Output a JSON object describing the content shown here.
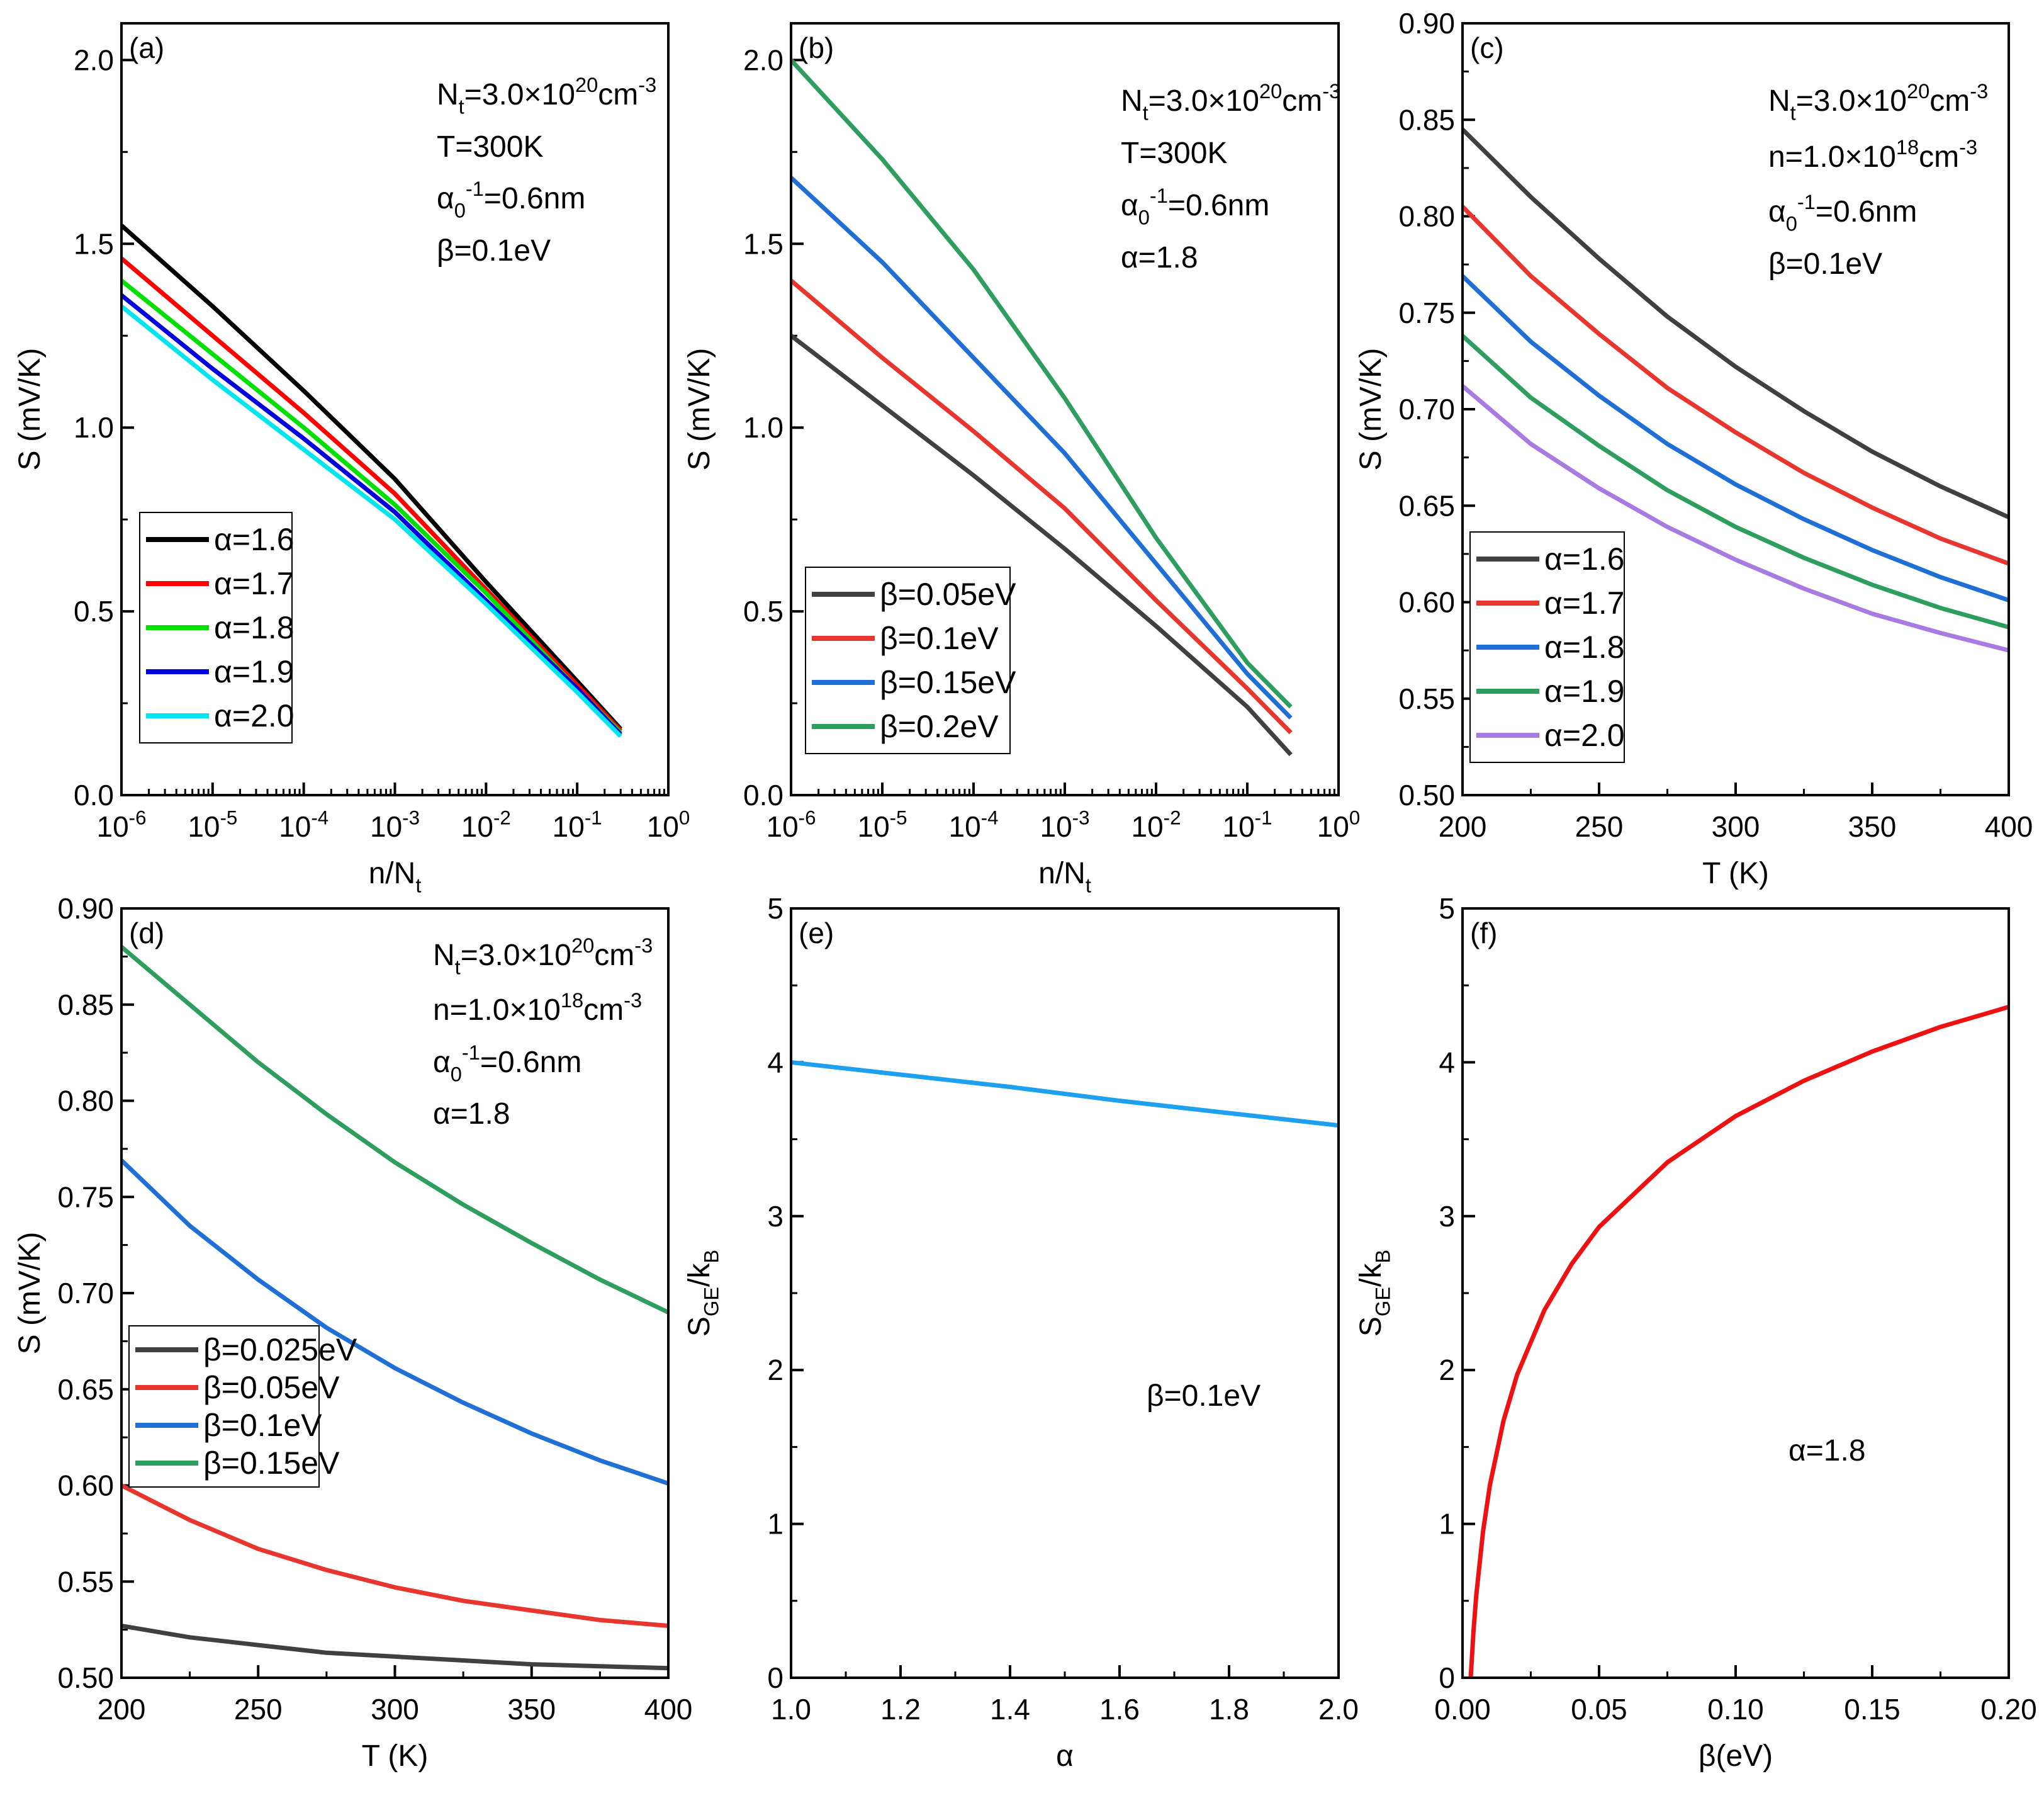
{
  "chart_data": [
    {
      "panel": "(a)",
      "type": "line",
      "xscale": "log",
      "xlabel": "n/N_{t}",
      "ylabel": "S (mV/K)",
      "xlim_log10": [
        -6,
        0
      ],
      "ylim": [
        0,
        2.1
      ],
      "xticks": [
        -6,
        -5,
        -4,
        -3,
        -2,
        -1,
        0
      ],
      "xtick_labels": [
        "10^{-6}",
        "10^{-5}",
        "10^{-4}",
        "10^{-3}",
        "10^{-2}",
        "10^{-1}",
        "10^{0}"
      ],
      "yticks": [
        0,
        0.5,
        1.0,
        1.5,
        2.0
      ],
      "ytick_labels": [
        "0.0",
        "0.5",
        "1.0",
        "1.5",
        "2.0"
      ],
      "annotations": [
        "N_{t}=3.0×10^{20}cm^{-3}",
        "T=300K",
        "α_{0}^{-1}=0.6nm",
        "β=0.1eV"
      ],
      "legend_placement": "lower-left",
      "x": [
        1e-06,
        1e-05,
        0.0001,
        0.001,
        0.01,
        0.1,
        0.3
      ],
      "series": [
        {
          "name": "α=1.6",
          "color": "#000000",
          "values": [
            1.55,
            1.33,
            1.1,
            0.86,
            0.58,
            0.31,
            0.18
          ]
        },
        {
          "name": "α=1.7",
          "color": "#ff0000",
          "values": [
            1.46,
            1.25,
            1.04,
            0.82,
            0.56,
            0.3,
            0.175
          ]
        },
        {
          "name": "α=1.8",
          "color": "#00e000",
          "values": [
            1.4,
            1.2,
            1.0,
            0.79,
            0.55,
            0.29,
            0.17
          ]
        },
        {
          "name": "α=1.9",
          "color": "#0000dd",
          "values": [
            1.36,
            1.16,
            0.97,
            0.77,
            0.53,
            0.29,
            0.165
          ]
        },
        {
          "name": "α=2.0",
          "color": "#00e5ee",
          "values": [
            1.33,
            1.13,
            0.94,
            0.75,
            0.52,
            0.28,
            0.16
          ]
        }
      ]
    },
    {
      "panel": "(b)",
      "type": "line",
      "xscale": "log",
      "xlabel": "n/N_{t}",
      "ylabel": "S (mV/K)",
      "xlim_log10": [
        -6,
        0
      ],
      "ylim": [
        0,
        2.1
      ],
      "xticks": [
        -6,
        -5,
        -4,
        -3,
        -2,
        -1,
        0
      ],
      "xtick_labels": [
        "10^{-6}",
        "10^{-5}",
        "10^{-4}",
        "10^{-3}",
        "10^{-2}",
        "10^{-1}",
        "10^{0}"
      ],
      "yticks": [
        0,
        0.5,
        1.0,
        1.5,
        2.0
      ],
      "ytick_labels": [
        "0.0",
        "0.5",
        "1.0",
        "1.5",
        "2.0"
      ],
      "annotations": [
        "N_{t}=3.0×10^{20}cm^{-3}",
        "T=300K",
        "α_{0}^{-1}=0.6nm",
        "α=1.8"
      ],
      "legend_placement": "lower-left",
      "x": [
        1e-06,
        1e-05,
        0.0001,
        0.001,
        0.01,
        0.1,
        0.3
      ],
      "series": [
        {
          "name": "β=0.05eV",
          "color": "#404040",
          "values": [
            1.25,
            1.06,
            0.87,
            0.67,
            0.46,
            0.24,
            0.11
          ]
        },
        {
          "name": "β=0.1eV",
          "color": "#e8352e",
          "values": [
            1.4,
            1.19,
            0.99,
            0.78,
            0.53,
            0.29,
            0.17
          ]
        },
        {
          "name": "β=0.15eV",
          "color": "#1f6fd6",
          "values": [
            1.68,
            1.45,
            1.19,
            0.93,
            0.63,
            0.33,
            0.21
          ]
        },
        {
          "name": "β=0.2eV",
          "color": "#2e9e5e",
          "values": [
            2.0,
            1.73,
            1.43,
            1.08,
            0.7,
            0.36,
            0.24
          ]
        }
      ]
    },
    {
      "panel": "(c)",
      "type": "line",
      "xscale": "linear",
      "xlabel": "T (K)",
      "ylabel": "S (mV/K)",
      "xlim": [
        200,
        400
      ],
      "ylim": [
        0.5,
        0.9
      ],
      "xticks": [
        200,
        250,
        300,
        350,
        400
      ],
      "xtick_labels": [
        "200",
        "250",
        "300",
        "350",
        "400"
      ],
      "yticks": [
        0.5,
        0.55,
        0.6,
        0.65,
        0.7,
        0.75,
        0.8,
        0.85,
        0.9
      ],
      "ytick_labels": [
        "0.50",
        "0.55",
        "0.60",
        "0.65",
        "0.70",
        "0.75",
        "0.80",
        "0.85",
        "0.90"
      ],
      "annotations": [
        "N_{t}=3.0×10^{20}cm^{-3}",
        "n=1.0×10^{18}cm^{-3}",
        "α_{0}^{-1}=0.6nm",
        "β=0.1eV"
      ],
      "legend_placement": "lower-left",
      "x": [
        200,
        225,
        250,
        275,
        300,
        325,
        350,
        375,
        400
      ],
      "series": [
        {
          "name": "α=1.6",
          "color": "#404040",
          "values": [
            0.845,
            0.81,
            0.778,
            0.748,
            0.722,
            0.699,
            0.678,
            0.66,
            0.644
          ]
        },
        {
          "name": "α=1.7",
          "color": "#e8352e",
          "values": [
            0.805,
            0.769,
            0.739,
            0.711,
            0.688,
            0.667,
            0.649,
            0.633,
            0.62
          ]
        },
        {
          "name": "α=1.8",
          "color": "#1f6fd6",
          "values": [
            0.769,
            0.735,
            0.707,
            0.682,
            0.661,
            0.643,
            0.627,
            0.613,
            0.601
          ]
        },
        {
          "name": "α=1.9",
          "color": "#2e9e5e",
          "values": [
            0.738,
            0.706,
            0.681,
            0.658,
            0.639,
            0.623,
            0.609,
            0.597,
            0.587
          ]
        },
        {
          "name": "α=2.0",
          "color": "#a77be0",
          "values": [
            0.712,
            0.682,
            0.659,
            0.639,
            0.622,
            0.607,
            0.594,
            0.584,
            0.575
          ]
        }
      ]
    },
    {
      "panel": "(d)",
      "type": "line",
      "xscale": "linear",
      "xlabel": "T (K)",
      "ylabel": "S (mV/K)",
      "xlim": [
        200,
        400
      ],
      "ylim": [
        0.5,
        0.9
      ],
      "xticks": [
        200,
        250,
        300,
        350,
        400
      ],
      "xtick_labels": [
        "200",
        "250",
        "300",
        "350",
        "400"
      ],
      "yticks": [
        0.5,
        0.55,
        0.6,
        0.65,
        0.7,
        0.75,
        0.8,
        0.85,
        0.9
      ],
      "ytick_labels": [
        "0.50",
        "0.55",
        "0.60",
        "0.65",
        "0.70",
        "0.75",
        "0.80",
        "0.85",
        "0.90"
      ],
      "annotations": [
        "N_{t}=3.0×10^{20}cm^{-3}",
        "n=1.0×10^{18}cm^{-3}",
        "α_{0}^{-1}=0.6nm",
        "α=1.8"
      ],
      "legend_placement": "middle-left",
      "x": [
        200,
        225,
        250,
        275,
        300,
        325,
        350,
        375,
        400
      ],
      "series": [
        {
          "name": "β=0.025eV",
          "color": "#404040",
          "values": [
            0.527,
            0.521,
            0.517,
            0.513,
            0.511,
            0.509,
            0.507,
            0.506,
            0.505
          ]
        },
        {
          "name": "β=0.05eV",
          "color": "#e8352e",
          "values": [
            0.6,
            0.582,
            0.567,
            0.556,
            0.547,
            0.54,
            0.535,
            0.53,
            0.527
          ]
        },
        {
          "name": "β=0.1eV",
          "color": "#1f6fd6",
          "values": [
            0.769,
            0.735,
            0.707,
            0.682,
            0.661,
            0.643,
            0.627,
            0.613,
            0.601
          ]
        },
        {
          "name": "β=0.15eV",
          "color": "#2e9e5e",
          "values": [
            0.88,
            0.85,
            0.82,
            0.793,
            0.768,
            0.746,
            0.726,
            0.707,
            0.69
          ]
        }
      ]
    },
    {
      "panel": "(e)",
      "type": "line",
      "xscale": "linear",
      "xlabel": "α",
      "ylabel": "S_{GE}/k_{B}",
      "xlim": [
        1.0,
        2.0
      ],
      "ylim": [
        0,
        5
      ],
      "xticks": [
        1.0,
        1.2,
        1.4,
        1.6,
        1.8,
        2.0
      ],
      "xtick_labels": [
        "1.0",
        "1.2",
        "1.4",
        "1.6",
        "1.8",
        "2.0"
      ],
      "yticks": [
        0,
        1,
        2,
        3,
        4,
        5
      ],
      "ytick_labels": [
        "0",
        "1",
        "2",
        "3",
        "4",
        "5"
      ],
      "annotations": [
        "β=0.1eV"
      ],
      "x": [
        1.0,
        1.2,
        1.4,
        1.6,
        1.8,
        2.0
      ],
      "series": [
        {
          "name": "S_GE/k_B",
          "color": "#1ea0f0",
          "values": [
            4.0,
            3.92,
            3.84,
            3.75,
            3.67,
            3.59
          ]
        }
      ]
    },
    {
      "panel": "(f)",
      "type": "line",
      "xscale": "linear",
      "xlabel": "β(eV)",
      "ylabel": "S_{GE}/k_{B}",
      "xlim": [
        0,
        0.2
      ],
      "ylim": [
        0,
        5
      ],
      "xticks": [
        0,
        0.05,
        0.1,
        0.15,
        0.2
      ],
      "xtick_labels": [
        "0.00",
        "0.05",
        "0.10",
        "0.15",
        "0.20"
      ],
      "yticks": [
        0,
        1,
        2,
        3,
        4,
        5
      ],
      "ytick_labels": [
        "0",
        "1",
        "2",
        "3",
        "4",
        "5"
      ],
      "annotations": [
        "α=1.8"
      ],
      "x": [
        0.003,
        0.004,
        0.005,
        0.0075,
        0.01,
        0.015,
        0.02,
        0.03,
        0.04,
        0.05,
        0.075,
        0.1,
        0.125,
        0.15,
        0.175,
        0.2
      ],
      "series": [
        {
          "name": "S_GE/k_B",
          "color": "#ee1111",
          "values": [
            0,
            0.3,
            0.53,
            0.95,
            1.25,
            1.67,
            1.97,
            2.39,
            2.69,
            2.93,
            3.35,
            3.65,
            3.88,
            4.07,
            4.23,
            4.36
          ]
        }
      ]
    }
  ]
}
